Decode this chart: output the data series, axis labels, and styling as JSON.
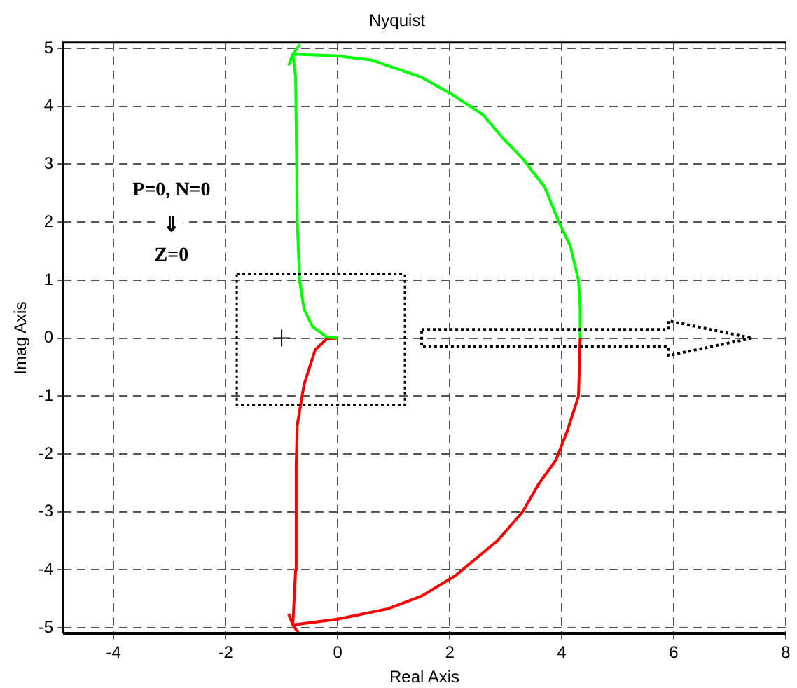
{
  "chart_data": {
    "type": "line",
    "title": "Nyquist",
    "xlabel": "Real Axis",
    "ylabel": "Imag Axis",
    "annotations": [
      "P=0, N=0",
      "⇓",
      "Z=0"
    ],
    "xlim": [
      -4.9,
      8
    ],
    "xticks": [
      -4,
      -2,
      0,
      2,
      4,
      6,
      8
    ],
    "ylim": [
      -5.1,
      5.1
    ],
    "yticks": [
      -5,
      -4,
      -3,
      -2,
      -1,
      0,
      1,
      2,
      3,
      4,
      5
    ],
    "grid": true,
    "legend": false,
    "series": [
      {
        "color": "#00ff00",
        "x": [
          4.33,
          4.33,
          4.3,
          4.15,
          3.95,
          3.7,
          3.3,
          2.95,
          2.6,
          2.05,
          1.5,
          0.6,
          0,
          -0.8,
          -0.75,
          -0.72,
          -0.68,
          -0.6,
          -0.45,
          -0.2,
          0
        ],
        "values": [
          0,
          0.5,
          1,
          1.6,
          2,
          2.6,
          3.1,
          3.45,
          3.85,
          4.2,
          4.5,
          4.8,
          4.87,
          4.9,
          4.5,
          2,
          1,
          0.5,
          0.2,
          0.02,
          0
        ]
      },
      {
        "color": "#ff0000",
        "x": [
          4.33,
          4.3,
          4.1,
          3.9,
          3.6,
          3.3,
          2.85,
          2.1,
          1.5,
          0.9,
          0,
          -0.8,
          -0.75,
          -0.74,
          -0.72,
          -0.6,
          -0.4,
          -0.2,
          0
        ],
        "values": [
          0,
          -1,
          -1.6,
          -2.1,
          -2.5,
          -3,
          -3.5,
          -4.1,
          -4.45,
          -4.67,
          -4.85,
          -4.95,
          -4,
          -2.2,
          -1.5,
          -0.8,
          -0.2,
          -0.02,
          0
        ]
      },
      {
        "type": "scatter",
        "marker": "cross",
        "color": "#000000",
        "x": [
          -1
        ],
        "values": [
          0
        ]
      }
    ]
  }
}
